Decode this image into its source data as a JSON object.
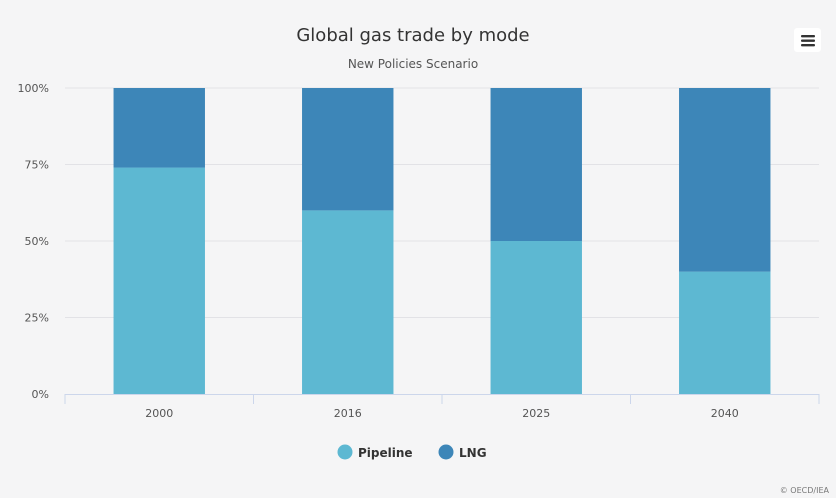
{
  "chart_data": {
    "type": "bar",
    "stacked": true,
    "title": "Global gas trade by mode",
    "subtitle": "New Policies Scenario",
    "categories": [
      "2000",
      "2016",
      "2025",
      "2040"
    ],
    "series": [
      {
        "name": "Pipeline",
        "color": "#5db8d2",
        "values": [
          74,
          60,
          50,
          40
        ]
      },
      {
        "name": "LNG",
        "color": "#3d86b8",
        "values": [
          26,
          40,
          50,
          60
        ]
      }
    ],
    "y_ticks": [
      "0%",
      "25%",
      "50%",
      "75%",
      "100%"
    ],
    "ylim": [
      0,
      100
    ],
    "grid": true,
    "legend": "bottom-center"
  },
  "menu": {
    "icon": "hamburger-menu-icon"
  },
  "credits": "© OECD/IEA"
}
